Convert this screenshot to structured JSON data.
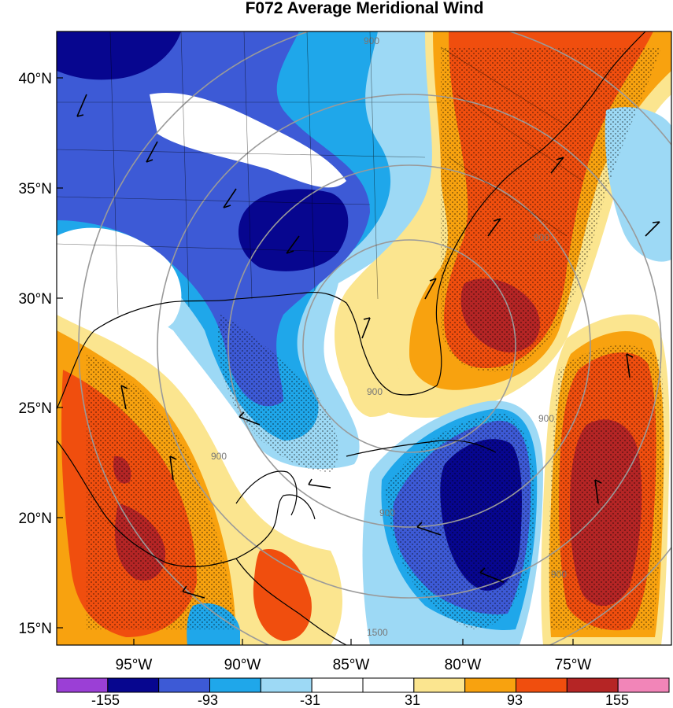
{
  "title": "F072 Average Meridional Wind",
  "lat_labels": [
    "40°N",
    "35°N",
    "30°N",
    "25°N",
    "20°N",
    "15°N"
  ],
  "lon_labels": [
    "95°W",
    "90°W",
    "85°W",
    "80°W",
    "75°W"
  ],
  "colorbar": {
    "colors": [
      "#9b3fd6",
      "#07068f",
      "#3d5ad6",
      "#1fa7ea",
      "#9dd9f5",
      "#ffffff",
      "#ffffff",
      "#fbe58f",
      "#f8a20f",
      "#f04e0e",
      "#b52525",
      "#f285b8"
    ],
    "labels": [
      "-155",
      "-93",
      "-31",
      "31",
      "93",
      "155"
    ]
  },
  "range_ring_labels": [
    "900",
    "900",
    "900",
    "900",
    "900",
    "900",
    "900",
    "1500"
  ]
}
